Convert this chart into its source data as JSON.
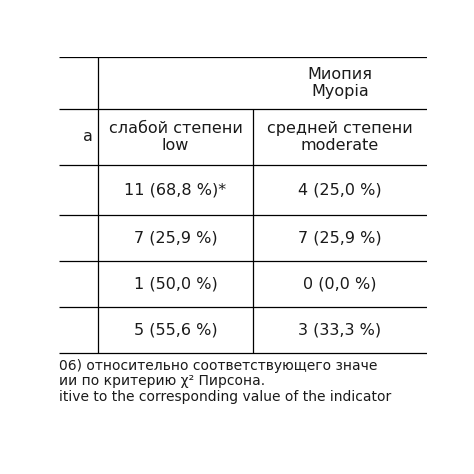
{
  "top_header": "Миопия\nMyopia",
  "col1_header": "слабой степени\nlow",
  "col2_header": "средней степени\nmoderate",
  "data_rows": [
    [
      "11 (68,8 %)*",
      "4 (25,0 %)"
    ],
    [
      "7 (25,9 %)",
      "7 (25,9 %)"
    ],
    [
      "1 (50,0 %)",
      "0 (0,0 %)"
    ],
    [
      "5 (55,6 %)",
      "3 (33,3 %)"
    ]
  ],
  "footer_lines": [
    "06) относительно соответствующего значе",
    "ии по критерию χ² Пирсона.",
    "itive to the corresponding value of the indicator"
  ],
  "left_stub_char": "а",
  "bg_color": "#ffffff",
  "text_color": "#1a1a1a",
  "font_size": 11.5,
  "footer_font_size": 10
}
